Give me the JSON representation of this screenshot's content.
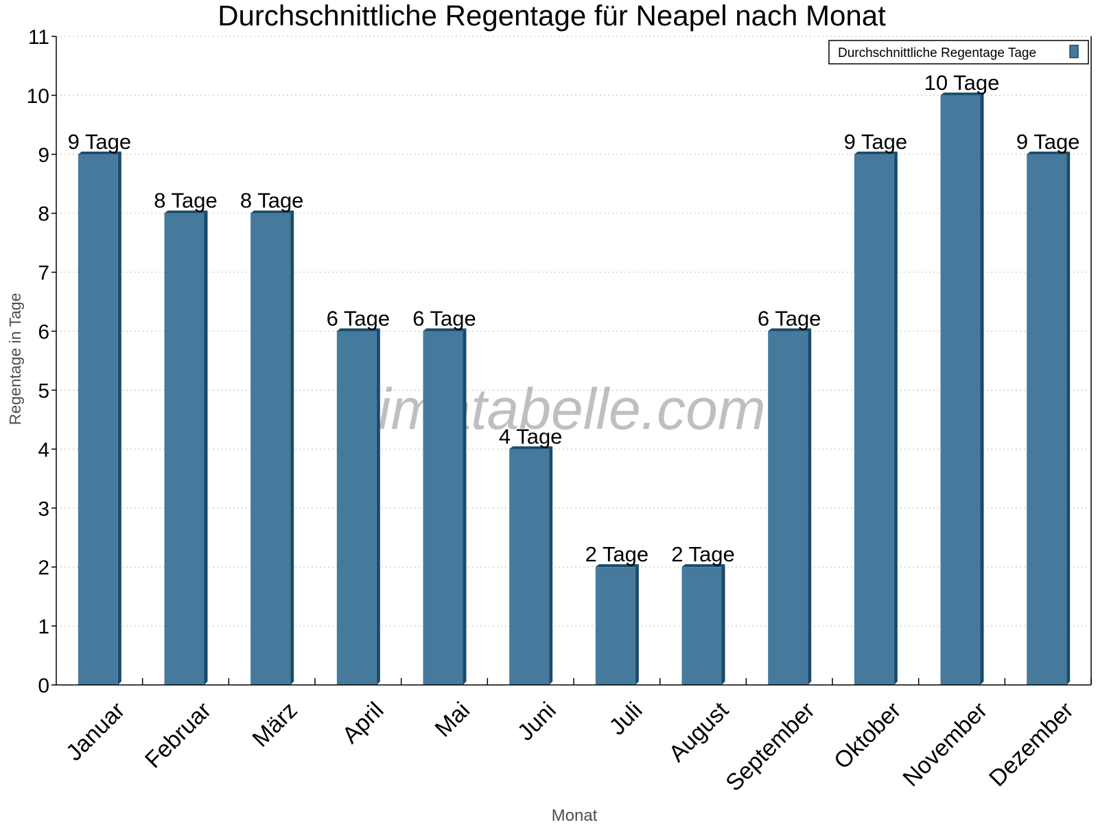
{
  "chart_data": {
    "type": "bar",
    "title": "Durchschnittliche Regentage für Neapel nach Monat",
    "xlabel": "Monat",
    "ylabel": "Regentage in Tage",
    "categories": [
      "Januar",
      "Februar",
      "März",
      "April",
      "Mai",
      "Juni",
      "Juli",
      "August",
      "September",
      "Oktober",
      "November",
      "Dezember"
    ],
    "series": [
      {
        "name": "Durchschnittliche Regentage Tage",
        "values": [
          9,
          8,
          8,
          6,
          6,
          4,
          2,
          2,
          6,
          9,
          10,
          9
        ],
        "color": "#467a9c",
        "side_color": "#1a4a6c"
      }
    ],
    "data_labels": [
      "9 Tage",
      "8 Tage",
      "8 Tage",
      "6 Tage",
      "6 Tage",
      "4 Tage",
      "2 Tage",
      "2 Tage",
      "6 Tage",
      "9 Tage",
      "10 Tage",
      "9 Tage"
    ],
    "ylim": [
      0,
      11
    ],
    "yticks": [
      "0",
      "1",
      "2",
      "3",
      "4",
      "5",
      "6",
      "7",
      "8",
      "9",
      "10",
      "11"
    ],
    "grid": true,
    "legend_position": "top-right",
    "watermark": "klimatabelle.com"
  }
}
